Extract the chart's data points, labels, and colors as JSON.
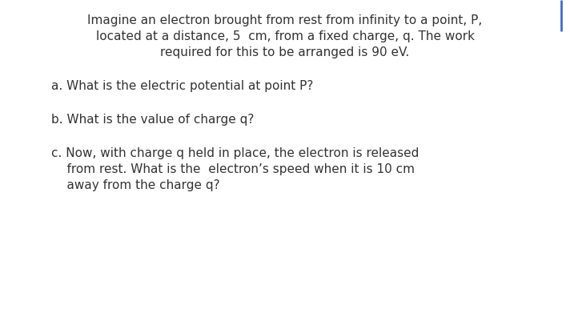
{
  "background_color": "#ffffff",
  "text_color": "#333333",
  "font_size": 11.0,
  "line1": "Imagine an electron brought from rest from infinity to a point, P,",
  "line2": "located at a distance, 5  cm, from a fixed charge, q. The work",
  "line3": "required for this to be arranged is 90 eV.",
  "qa": "a. What is the electric potential at point P?",
  "qb": "b. What is the value of charge q?",
  "qc1": "c. Now, with charge q held in place, the electron is released",
  "qc2": "    from rest. What is the  electron’s speed when it is 10 cm",
  "qc3": "    away from the charge q?",
  "cursor_color": "#4466cc",
  "fig_width": 7.12,
  "fig_height": 3.86,
  "dpi": 100
}
